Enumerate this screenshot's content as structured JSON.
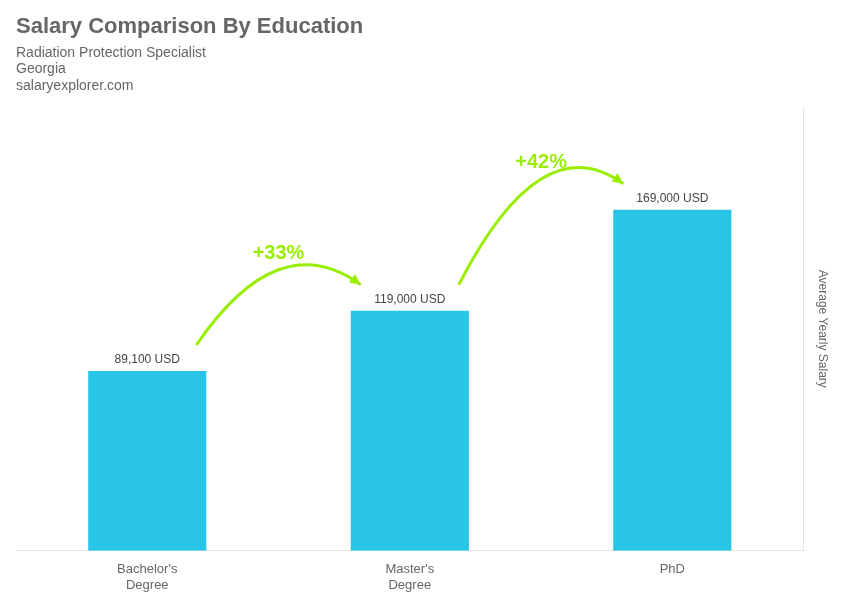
{
  "chart_data": {
    "type": "bar",
    "title": "Salary Comparison By Education",
    "subtitle": "Radiation Protection Specialist",
    "annotations": [
      {
        "text": "Georgia"
      },
      {
        "text": "salaryexplorer.com"
      },
      {
        "text": "+33%",
        "from": "Bachelor's\nDegree",
        "to": "Master's\nDegree",
        "color": "#99ee00"
      },
      {
        "text": "+42%",
        "from": "Master's\nDegree",
        "to": "PhD",
        "color": "#99ee00"
      }
    ],
    "ylabel": "Average Yearly Salary",
    "categories": [
      "Bachelor's\nDegree",
      "Master's\nDegree",
      "PhD"
    ],
    "values": [
      89100,
      119000,
      169000
    ],
    "value_labels": [
      "89,100 USD",
      "119,000 USD",
      "169,000 USD"
    ],
    "color": "#29c5e6",
    "ylim": [
      0,
      220000
    ],
    "grid": false,
    "data_labels": true,
    "tick_labels": "x"
  }
}
